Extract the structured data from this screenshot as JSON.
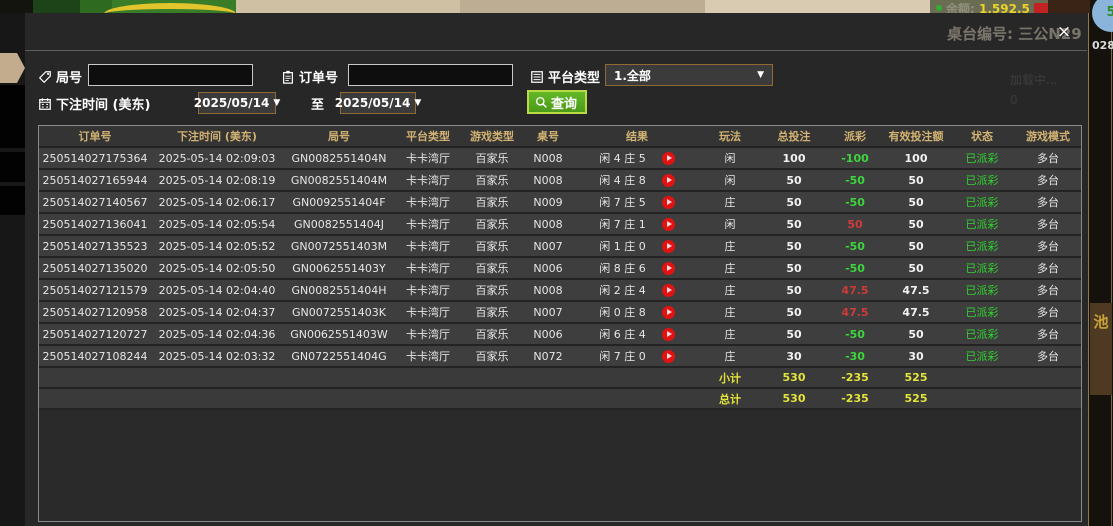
{
  "modal": {
    "close_icon": "×"
  },
  "filters": {
    "round_label": "局号",
    "order_label": "订单号",
    "platform_label": "平台类型",
    "platform_value": "1.全部",
    "dropdown_arrow": "▼",
    "bet_time_label": "下注时间 (美东)",
    "date_from": "2025/05/14",
    "to_label": "至",
    "date_to": "2025/05/14",
    "query_label": "查询"
  },
  "table": {
    "headers": [
      "订单号",
      "下注时间 (美东)",
      "局号",
      "平台类型",
      "游戏类型",
      "桌号",
      "结果",
      "玩法",
      "总投注",
      "派彩",
      "有效投注额",
      "状态",
      "游戏模式"
    ],
    "columns": [
      "order",
      "time",
      "round",
      "platform",
      "game",
      "table_no",
      "result",
      "play",
      "bet",
      "payout",
      "valid",
      "status",
      "mode"
    ],
    "rows": [
      {
        "order": "250514027175364",
        "time": "2025-05-14 02:09:03",
        "round": "GN0082551404N",
        "platform": "卡卡湾厅",
        "game": "百家乐",
        "table_no": "N008",
        "result": "闲 4 庄 5",
        "play": "闲",
        "bet": "100",
        "payout": "-100",
        "payout_dir": "loss",
        "valid": "100",
        "status": "已派彩",
        "mode": "多台"
      },
      {
        "order": "250514027165944",
        "time": "2025-05-14 02:08:19",
        "round": "GN0082551404M",
        "platform": "卡卡湾厅",
        "game": "百家乐",
        "table_no": "N008",
        "result": "闲 4 庄 8",
        "play": "闲",
        "bet": "50",
        "payout": "-50",
        "payout_dir": "loss",
        "valid": "50",
        "status": "已派彩",
        "mode": "多台"
      },
      {
        "order": "250514027140567",
        "time": "2025-05-14 02:06:17",
        "round": "GN0092551404F",
        "platform": "卡卡湾厅",
        "game": "百家乐",
        "table_no": "N009",
        "result": "闲 7 庄 5",
        "play": "庄",
        "bet": "50",
        "payout": "-50",
        "payout_dir": "loss",
        "valid": "50",
        "status": "已派彩",
        "mode": "多台"
      },
      {
        "order": "250514027136041",
        "time": "2025-05-14 02:05:54",
        "round": "GN0082551404J",
        "platform": "卡卡湾厅",
        "game": "百家乐",
        "table_no": "N008",
        "result": "闲 7 庄 1",
        "play": "闲",
        "bet": "50",
        "payout": "50",
        "payout_dir": "win",
        "valid": "50",
        "status": "已派彩",
        "mode": "多台"
      },
      {
        "order": "250514027135523",
        "time": "2025-05-14 02:05:52",
        "round": "GN0072551403M",
        "platform": "卡卡湾厅",
        "game": "百家乐",
        "table_no": "N007",
        "result": "闲 1 庄 0",
        "play": "庄",
        "bet": "50",
        "payout": "-50",
        "payout_dir": "loss",
        "valid": "50",
        "status": "已派彩",
        "mode": "多台"
      },
      {
        "order": "250514027135020",
        "time": "2025-05-14 02:05:50",
        "round": "GN0062551403Y",
        "platform": "卡卡湾厅",
        "game": "百家乐",
        "table_no": "N006",
        "result": "闲 8 庄 6",
        "play": "庄",
        "bet": "50",
        "payout": "-50",
        "payout_dir": "loss",
        "valid": "50",
        "status": "已派彩",
        "mode": "多台"
      },
      {
        "order": "250514027121579",
        "time": "2025-05-14 02:04:40",
        "round": "GN0082551404H",
        "platform": "卡卡湾厅",
        "game": "百家乐",
        "table_no": "N008",
        "result": "闲 2 庄 4",
        "play": "庄",
        "bet": "50",
        "payout": "47.5",
        "payout_dir": "win",
        "valid": "47.5",
        "status": "已派彩",
        "mode": "多台"
      },
      {
        "order": "250514027120958",
        "time": "2025-05-14 02:04:37",
        "round": "GN0072551403K",
        "platform": "卡卡湾厅",
        "game": "百家乐",
        "table_no": "N007",
        "result": "闲 0 庄 8",
        "play": "庄",
        "bet": "50",
        "payout": "47.5",
        "payout_dir": "win",
        "valid": "47.5",
        "status": "已派彩",
        "mode": "多台"
      },
      {
        "order": "250514027120727",
        "time": "2025-05-14 02:04:36",
        "round": "GN0062551403W",
        "platform": "卡卡湾厅",
        "game": "百家乐",
        "table_no": "N006",
        "result": "闲 6 庄 4",
        "play": "庄",
        "bet": "50",
        "payout": "-50",
        "payout_dir": "loss",
        "valid": "50",
        "status": "已派彩",
        "mode": "多台"
      },
      {
        "order": "250514027108244",
        "time": "2025-05-14 02:03:32",
        "round": "GN0722551404G",
        "platform": "卡卡湾厅",
        "game": "百家乐",
        "table_no": "N072",
        "result": "闲 7 庄 0",
        "play": "庄",
        "bet": "30",
        "payout": "-30",
        "payout_dir": "loss",
        "valid": "30",
        "status": "已派彩",
        "mode": "多台"
      }
    ],
    "subtotal": {
      "label": "小计",
      "bet": "530",
      "payout": "-235",
      "valid": "525"
    },
    "total": {
      "label": "总计",
      "bet": "530",
      "payout": "-235",
      "valid": "525"
    }
  },
  "background": {
    "balance_label": "余额:",
    "balance_value": "1,592.5",
    "table_label": "桌台编号: 三公N29",
    "loading_text": "加载中...",
    "zero_text": "0",
    "right_edge_text": "028",
    "side_char": "池",
    "chip_value": "5"
  },
  "colors": {
    "query_green": "#54a81d",
    "win_red": "#d03a3a",
    "loss_green": "#3dd53d",
    "paid_green": "#2fd32f",
    "summary_yellow": "#e3e33a",
    "header_gold": "#d2b272",
    "date_border": "#8f6b33"
  }
}
